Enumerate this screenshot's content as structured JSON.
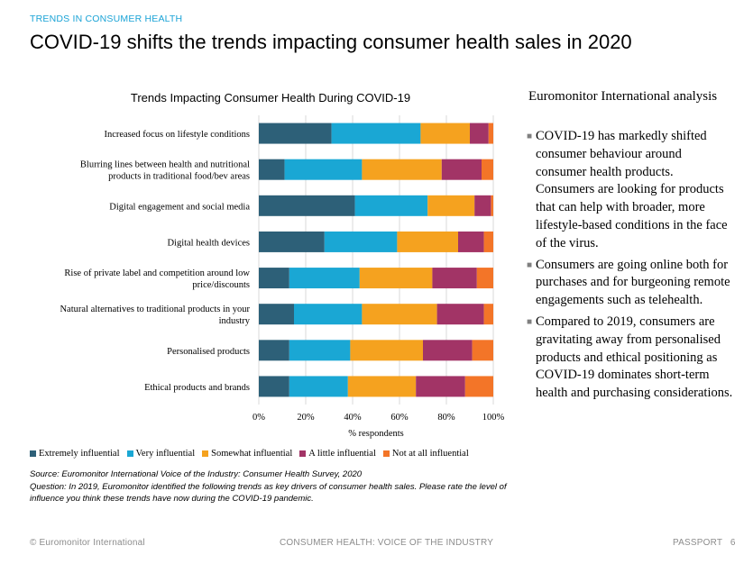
{
  "header": {
    "kicker": "TRENDS IN CONSUMER HEALTH",
    "title": "COVID-19 shifts the trends impacting consumer health sales in 2020"
  },
  "colors": {
    "extremely": "#2d6078",
    "very": "#1aa7d4",
    "somewhat": "#f5a21f",
    "little": "#a23466",
    "not_at_all": "#f37528",
    "text_accent": "#1aa3d6"
  },
  "chart_data": {
    "type": "bar",
    "orientation": "horizontal",
    "stacked": true,
    "title": "Trends Impacting Consumer Health During COVID-19",
    "xlabel": "% respondents",
    "xlim": [
      0,
      100
    ],
    "xticks": [
      "0%",
      "20%",
      "40%",
      "60%",
      "80%",
      "100%"
    ],
    "grid": true,
    "legend_position": "bottom",
    "categories": [
      [
        "Increased focus on lifestyle conditions"
      ],
      [
        "Blurring lines between health and nutritional",
        "products in traditional food/bev areas"
      ],
      [
        "Digital engagement and social media"
      ],
      [
        "Digital health devices"
      ],
      [
        "Rise of private label and competition around low",
        "price/discounts"
      ],
      [
        "Natural alternatives to traditional products in your",
        "industry"
      ],
      [
        "Personalised products"
      ],
      [
        "Ethical products and brands"
      ]
    ],
    "series": [
      {
        "name": "Extremely influential",
        "color": "#2d6078",
        "values": [
          31,
          11,
          41,
          28,
          13,
          15,
          13,
          13
        ]
      },
      {
        "name": "Very influential",
        "color": "#1aa7d4",
        "values": [
          38,
          33,
          31,
          31,
          30,
          29,
          26,
          25
        ]
      },
      {
        "name": "Somewhat influential",
        "color": "#f5a21f",
        "values": [
          21,
          34,
          20,
          26,
          31,
          32,
          31,
          29
        ]
      },
      {
        "name": "A little influential",
        "color": "#a23466",
        "values": [
          8,
          17,
          7,
          11,
          19,
          20,
          21,
          21
        ]
      },
      {
        "name": "Not at all influential",
        "color": "#f37528",
        "values": [
          2,
          5,
          1,
          4,
          7,
          4,
          9,
          12
        ]
      }
    ]
  },
  "notes": {
    "source": "Source: Euromonitor International Voice of the Industry: Consumer Health Survey, 2020",
    "question": "Question: In 2019, Euromonitor identified the following trends as key drivers of consumer health sales. Please rate the level of influence you think these trends have now during the COVID-19 pandemic."
  },
  "analysis": {
    "title": "Euromonitor International analysis",
    "bullets": [
      "COVID-19 has markedly shifted consumer behaviour around consumer health products. Consumers are looking for products that can help with broader, more lifestyle-based conditions in the face of the virus.",
      "Consumers are going online both for purchases and for burgeoning remote engagements such as telehealth.",
      "Compared to 2019, consumers are gravitating away from personalised products and ethical positioning as COVID-19 dominates short-term health and purchasing considerations."
    ]
  },
  "footer": {
    "left": "© Euromonitor International",
    "center": "CONSUMER HEALTH: VOICE OF THE INDUSTRY",
    "right": "PASSPORT   6"
  }
}
